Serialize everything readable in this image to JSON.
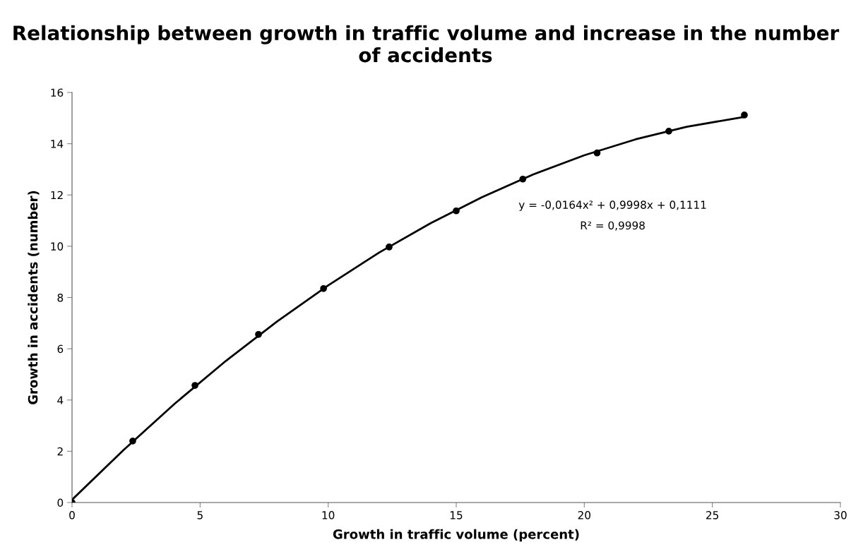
{
  "chart_data": {
    "type": "scatter",
    "title": "Relationship between growth in traffic volume and increase in the number of accidents",
    "xlabel": "Growth in traffic volume (percent)",
    "ylabel": "Growth in accidents (number)",
    "xlim": [
      0,
      30
    ],
    "xticks": [
      0,
      5,
      10,
      15,
      20,
      25,
      30
    ],
    "ylim": [
      0,
      16
    ],
    "yticks": [
      0,
      2,
      4,
      6,
      8,
      10,
      12,
      14,
      16
    ],
    "grid": false,
    "marker": "circle",
    "series": [
      {
        "color": "#000000",
        "x": [
          0,
          2.37,
          4.8,
          7.28,
          9.82,
          12.38,
          15.0,
          17.6,
          20.5,
          23.3,
          26.25
        ],
        "values": [
          0,
          2.4,
          4.57,
          6.56,
          8.35,
          9.97,
          11.38,
          12.62,
          13.64,
          14.49,
          15.12
        ]
      },
      {
        "type": "line",
        "color": "#000000",
        "marker": "none",
        "line_style": "solid",
        "x": [
          0,
          2,
          4,
          6,
          8,
          10,
          12,
          14,
          16,
          18,
          20,
          22,
          24,
          26.25
        ],
        "values": [
          0.11,
          2.04,
          3.85,
          5.52,
          7.06,
          8.47,
          9.76,
          10.9,
          11.91,
          12.8,
          13.55,
          14.17,
          14.66,
          15.05
        ]
      }
    ],
    "annotations": [
      "y = -0,0164x² + 0,9998x + 0,1111",
      "R² = 0,9998"
    ]
  }
}
